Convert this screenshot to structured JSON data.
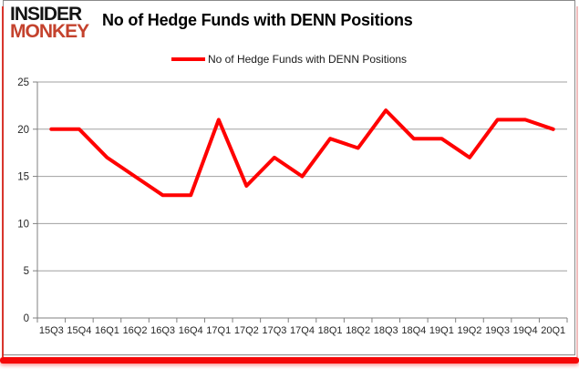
{
  "logo": {
    "line1": "INSIDER",
    "line2": "MONKEY"
  },
  "title": "No of Hedge Funds with DENN Positions",
  "legend": {
    "label": "No of Hedge Funds with DENN Positions"
  },
  "chart_data": {
    "type": "line",
    "title": "No of Hedge Funds with DENN Positions",
    "series_name": "No of Hedge Funds with DENN Positions",
    "categories": [
      "15Q3",
      "15Q4",
      "16Q1",
      "16Q2",
      "16Q3",
      "16Q4",
      "17Q1",
      "17Q2",
      "17Q3",
      "17Q4",
      "18Q1",
      "18Q2",
      "18Q3",
      "18Q4",
      "19Q1",
      "19Q2",
      "19Q3",
      "19Q4",
      "20Q1"
    ],
    "values": [
      20,
      20,
      17,
      15,
      13,
      13,
      21,
      14,
      17,
      15,
      19,
      18,
      22,
      19,
      19,
      17,
      21,
      21,
      20
    ],
    "xlabel": "",
    "ylabel": "",
    "ylim": [
      0,
      25
    ],
    "yticks": [
      0,
      5,
      10,
      15,
      20,
      25
    ],
    "grid": true,
    "legend_position": "top",
    "line_color": "#ff0000",
    "gridline_color": "#a0a0a0",
    "axis_color": "#808080",
    "tick_label_color": "#262626"
  },
  "colors": {
    "logo_red": "#c4422d",
    "accent_red_band": "#f50808",
    "chart_border_gray": "#8a8a8a"
  }
}
